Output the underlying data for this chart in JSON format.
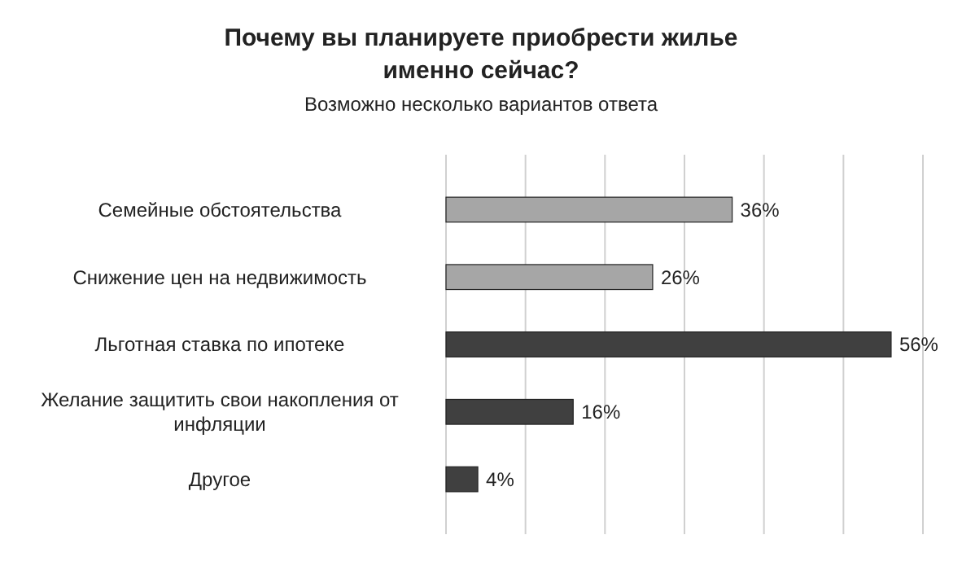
{
  "chart_data": {
    "type": "bar",
    "orientation": "horizontal",
    "title": "Почему вы планируете приобрести жилье именно сейчас?",
    "subtitle": "Возможно несколько вариантов ответа",
    "categories": [
      "Семейные обстоятельства",
      "Снижение цен на недвижимость",
      "Льготная ставка по ипотеке",
      "Желание защитить свои накопления от инфляции",
      "Другое"
    ],
    "values": [
      36,
      26,
      56,
      16,
      4
    ],
    "colors": [
      "#a6a6a6",
      "#a6a6a6",
      "#404040",
      "#404040",
      "#404040"
    ],
    "value_labels": [
      "36%",
      "26%",
      "56%",
      "16%",
      "4%"
    ],
    "xlim": [
      0,
      60
    ],
    "xticks": [
      {
        "value": 0,
        "label": null
      },
      {
        "value": 10,
        "label": null
      },
      {
        "value": 20,
        "label": null
      },
      {
        "value": 30,
        "label": null
      },
      {
        "value": 40,
        "label": null
      },
      {
        "value": 50,
        "label": null
      },
      {
        "value": 60,
        "label": null
      }
    ],
    "grid": "x",
    "tick_labels": "y"
  }
}
